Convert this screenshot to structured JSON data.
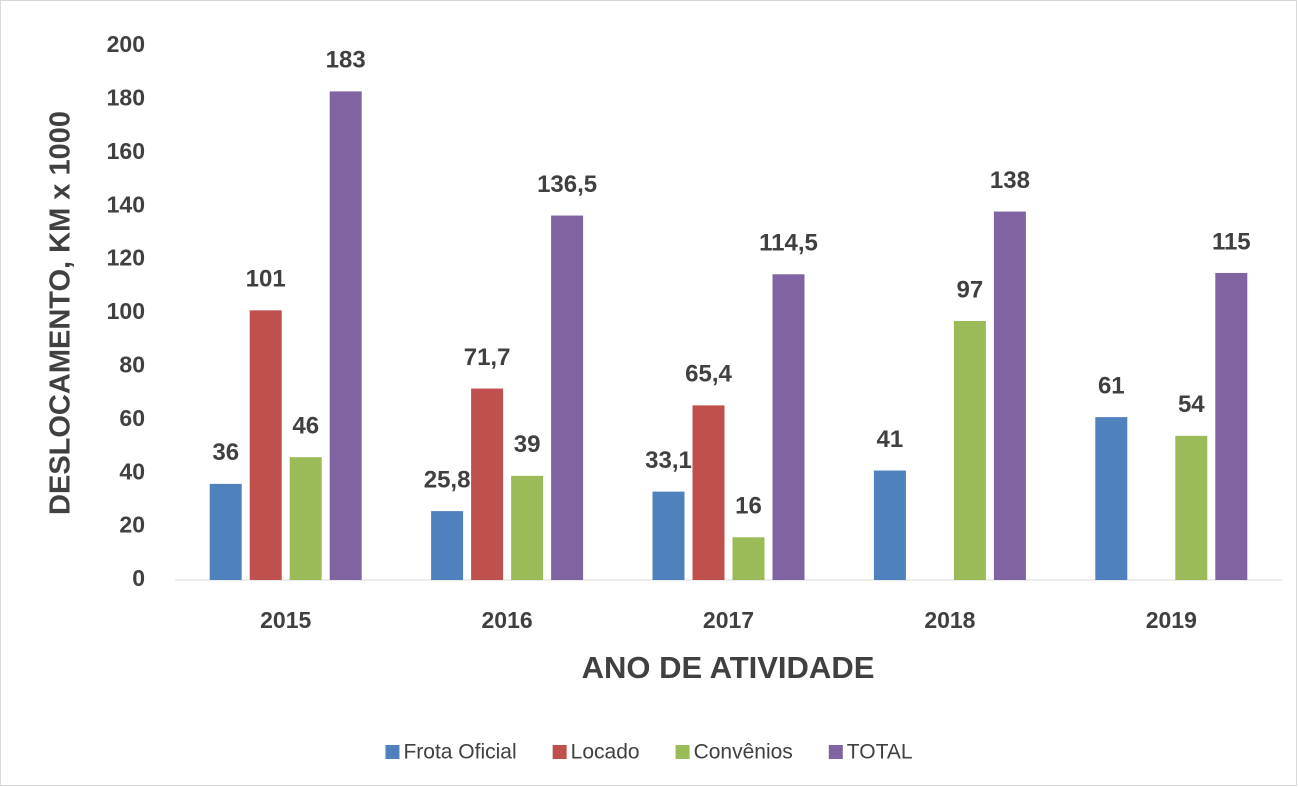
{
  "chart_data": {
    "type": "bar",
    "categories": [
      "2015",
      "2016",
      "2017",
      "2018",
      "2019"
    ],
    "series": [
      {
        "name": "Frota Oficial",
        "color": "#4f81bd",
        "values": [
          36,
          25.8,
          33.1,
          41,
          61
        ],
        "value_labels": [
          "36",
          "25,8",
          "33,1",
          "41",
          "61"
        ]
      },
      {
        "name": "Locado",
        "color": "#c0504d",
        "values": [
          101,
          71.7,
          65.4,
          null,
          null
        ],
        "value_labels": [
          "101",
          "71,7",
          "65,4",
          null,
          null
        ]
      },
      {
        "name": "Convênios",
        "color": "#9bbb59",
        "values": [
          46,
          39,
          16,
          97,
          54
        ],
        "value_labels": [
          "46",
          "39",
          "16",
          "97",
          "54"
        ]
      },
      {
        "name": "TOTAL",
        "color": "#8064a2",
        "values": [
          183,
          136.5,
          114.5,
          138,
          115
        ],
        "value_labels": [
          "183",
          "136,5",
          "114,5",
          "138",
          "115"
        ]
      }
    ],
    "x_label": "ANO DE ATIVIDADE",
    "y_label": "DESLOCAMENTO, KM x 1000",
    "ylim": [
      0,
      200
    ],
    "yticks": [
      0,
      20,
      40,
      60,
      80,
      100,
      120,
      140,
      160,
      180,
      200
    ],
    "grid": false,
    "legend": "bottom"
  }
}
